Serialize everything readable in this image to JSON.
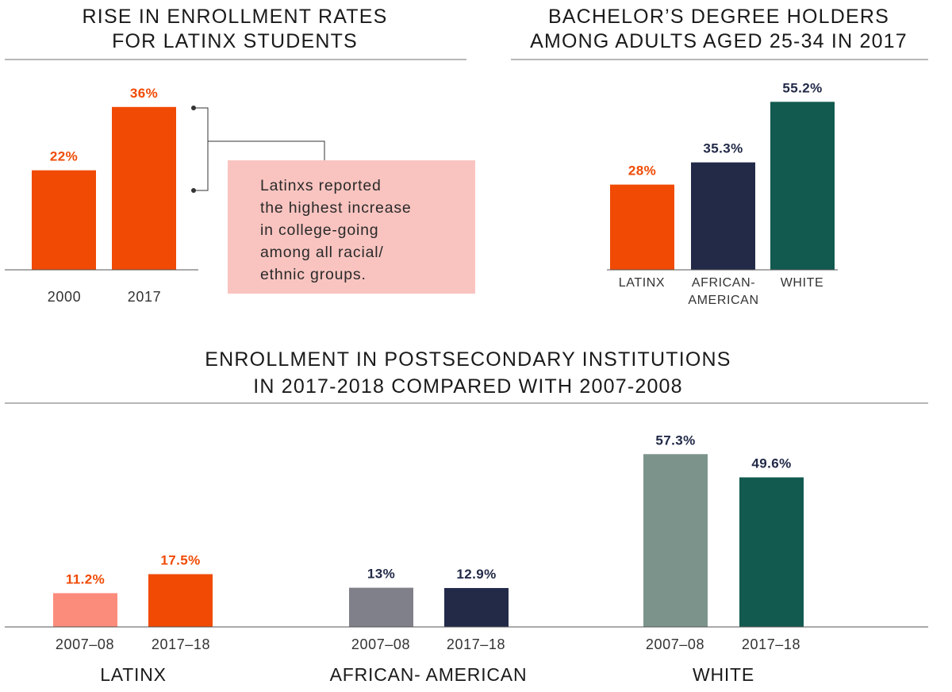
{
  "chart_data": [
    {
      "type": "bar",
      "title": [
        "RISE IN ENROLLMENT RATES",
        "FOR LATINX STUDENTS"
      ],
      "categories": [
        "2000",
        "2017"
      ],
      "values": [
        22,
        36
      ],
      "value_labels": [
        "22%",
        "36%"
      ],
      "colors": [
        "#f04a04",
        "#f04a04"
      ],
      "label_color": "#f04a04",
      "ylim": [
        0,
        40
      ],
      "callout": {
        "lines": [
          "Latinxs reported",
          "the highest increase",
          "in college-going",
          "among all racial/",
          "ethnic groups."
        ],
        "background": "#f9c4c0"
      }
    },
    {
      "type": "bar",
      "title": [
        "BACHELOR’S DEGREE HOLDERS",
        "AMONG ADULTS AGED 25-34 IN 2017"
      ],
      "categories": [
        [
          "LATINX"
        ],
        [
          "AFRICAN-",
          "AMERICAN"
        ],
        [
          "WHITE"
        ]
      ],
      "values": [
        28,
        35.3,
        55.2
      ],
      "value_labels": [
        "28%",
        "35.3%",
        "55.2%"
      ],
      "colors": [
        "#f04a04",
        "#222a48",
        "#125a4f"
      ],
      "label_colors": [
        "#f04a04",
        "#222a48",
        "#222a48"
      ],
      "ylim": [
        0,
        60
      ]
    },
    {
      "type": "bar",
      "title": [
        "ENROLLMENT IN POSTSECONDARY INSTITUTIONS",
        "IN 2017-2018 COMPARED WITH 2007-2008"
      ],
      "groups": [
        "LATINX",
        "AFRICAN- AMERICAN",
        "WHITE"
      ],
      "categories": [
        "2007–08",
        "2017–18"
      ],
      "series": [
        {
          "values": [
            11.2,
            17.5
          ],
          "value_labels": [
            "11.2%",
            "17.5%"
          ],
          "colors": [
            "#fb8b7b",
            "#f04a04"
          ],
          "label_color": "#f04a04"
        },
        {
          "values": [
            13,
            12.9
          ],
          "value_labels": [
            "13%",
            "12.9%"
          ],
          "colors": [
            "#80808a",
            "#222a48"
          ],
          "label_color": "#222a48"
        },
        {
          "values": [
            57.3,
            49.6
          ],
          "value_labels": [
            "57.3%",
            "49.6%"
          ],
          "colors": [
            "#7b938b",
            "#125a4f"
          ],
          "label_color": "#222a48"
        }
      ],
      "ylim": [
        0,
        60
      ]
    }
  ]
}
